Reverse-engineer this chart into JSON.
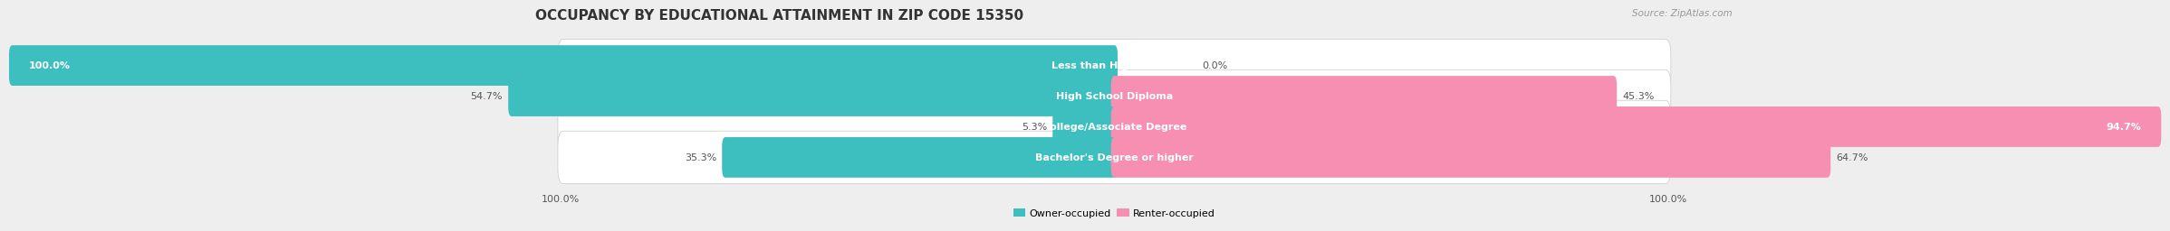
{
  "title": "OCCUPANCY BY EDUCATIONAL ATTAINMENT IN ZIP CODE 15350",
  "source": "Source: ZipAtlas.com",
  "categories": [
    "Less than High School",
    "High School Diploma",
    "College/Associate Degree",
    "Bachelor's Degree or higher"
  ],
  "owner_values": [
    100.0,
    54.7,
    5.3,
    35.3
  ],
  "renter_values": [
    0.0,
    45.3,
    94.7,
    64.7
  ],
  "owner_color": "#3DBFBF",
  "renter_color": "#F78FB3",
  "bg_color": "#eeeeee",
  "bar_bg_color": "#f7f7f7",
  "title_fontsize": 11,
  "label_fontsize": 8,
  "value_fontsize": 8,
  "axis_label_fontsize": 8,
  "legend_fontsize": 8,
  "bar_height": 0.72,
  "left_axis_label": "100.0%",
  "right_axis_label": "100.0%"
}
